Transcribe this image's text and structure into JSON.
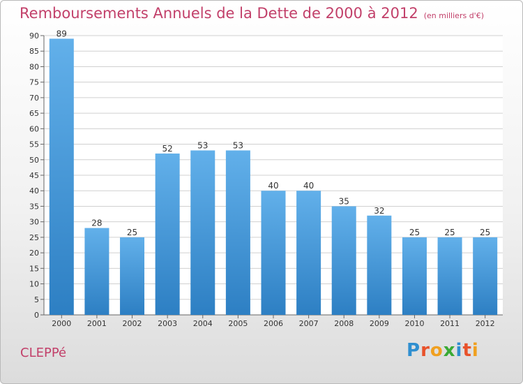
{
  "title": "Remboursements Annuels de la Dette de 2000 à 2012",
  "subtitle": "(en milliers d'€)",
  "commune": "CLEPPé",
  "logo": {
    "text": "Proxiti",
    "letters": [
      {
        "char": "P",
        "color": "#2f8fd0"
      },
      {
        "char": "r",
        "color": "#e8522b"
      },
      {
        "char": "o",
        "color": "#f0a020"
      },
      {
        "char": "x",
        "color": "#3aaa35"
      },
      {
        "char": "i",
        "color": "#2f8fd0"
      },
      {
        "char": "t",
        "color": "#e8522b"
      },
      {
        "char": "i",
        "color": "#f0a020"
      }
    ]
  },
  "colors": {
    "title": "#c2406a",
    "bar_top": "#62b0ea",
    "bar_bottom": "#2d7fc3",
    "grid": "#d0d0d0"
  },
  "chart_data": {
    "type": "bar",
    "title": "Remboursements Annuels de la Dette de 2000 à 2012",
    "subtitle": "(en milliers d'€)",
    "categories": [
      "2000",
      "2001",
      "2002",
      "2003",
      "2004",
      "2005",
      "2006",
      "2007",
      "2008",
      "2009",
      "2010",
      "2011",
      "2012"
    ],
    "values": [
      89,
      28,
      25,
      52,
      53,
      53,
      40,
      40,
      35,
      32,
      25,
      25,
      25
    ],
    "ylim": [
      0,
      90
    ],
    "yticks": [
      0,
      5,
      10,
      15,
      20,
      25,
      30,
      35,
      40,
      45,
      50,
      55,
      60,
      65,
      70,
      75,
      80,
      85,
      90
    ],
    "grid": true,
    "xlabel": "",
    "ylabel": ""
  }
}
